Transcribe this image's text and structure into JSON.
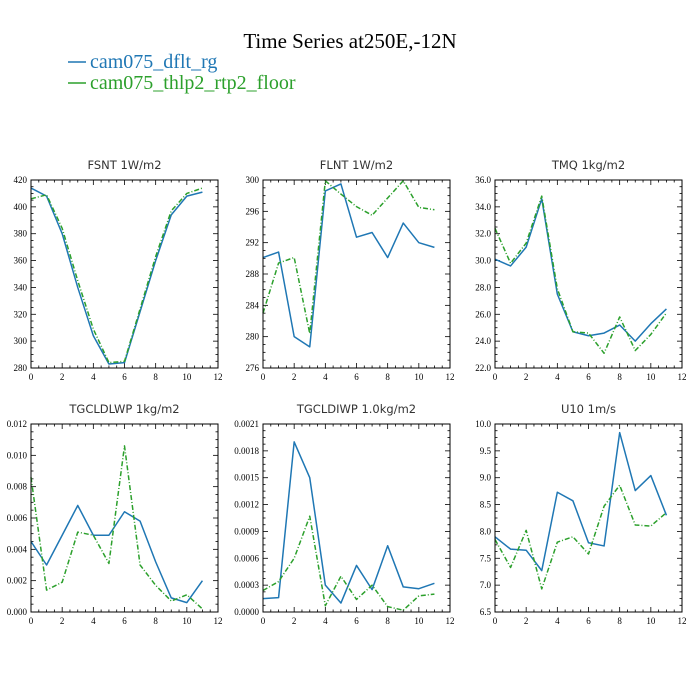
{
  "figure": {
    "title": "Time Series at250E,-12N",
    "legend": [
      {
        "label": "cam075_dflt_rg",
        "color": "#1f77b4",
        "dash": "solid"
      },
      {
        "label": "cam075_thlp2_rtp2_floor",
        "color": "#2ca02c",
        "dash": "dashed"
      }
    ]
  },
  "chart_data": [
    {
      "type": "line",
      "title": "FSNT   1W/m2",
      "x": [
        0,
        1,
        2,
        3,
        4,
        5,
        6,
        7,
        8,
        9,
        10,
        11
      ],
      "xlim": [
        0,
        12
      ],
      "xticks": [
        "0",
        "2",
        "4",
        "6",
        "8",
        "10",
        "12"
      ],
      "ylim": [
        280,
        420
      ],
      "yticks": [
        "280",
        "300",
        "320",
        "340",
        "360",
        "380",
        "400",
        "420"
      ],
      "series": [
        {
          "name": "cam075_dflt_rg",
          "values": [
            414,
            408,
            380,
            340,
            304,
            283,
            284,
            322,
            360,
            394,
            408,
            411
          ]
        },
        {
          "name": "cam075_thlp2_rtp2_floor",
          "values": [
            406,
            409,
            384,
            345,
            309,
            284,
            285,
            324,
            363,
            397,
            410,
            414
          ]
        }
      ]
    },
    {
      "type": "line",
      "title": "FLNT   1W/m2",
      "x": [
        0,
        1,
        2,
        3,
        4,
        5,
        6,
        7,
        8,
        9,
        10,
        11
      ],
      "xlim": [
        0,
        12
      ],
      "xticks": [
        "0",
        "2",
        "4",
        "6",
        "8",
        "10",
        "12"
      ],
      "ylim": [
        276,
        300
      ],
      "yticks": [
        "276",
        "280",
        "284",
        "288",
        "292",
        "296",
        "300"
      ],
      "series": [
        {
          "name": "cam075_dflt_rg",
          "values": [
            290.1,
            290.8,
            280,
            278.7,
            298.6,
            299.5,
            292.7,
            293.3,
            290.1,
            294.5,
            292,
            291.4
          ]
        },
        {
          "name": "cam075_thlp2_rtp2_floor",
          "values": [
            283,
            289.4,
            290.1,
            280.4,
            299.9,
            298.2,
            296.6,
            295.5,
            297.7,
            299.9,
            296.5,
            296.2
          ]
        }
      ]
    },
    {
      "type": "line",
      "title": "TMQ   1kg/m2",
      "x": [
        0,
        1,
        2,
        3,
        4,
        5,
        6,
        7,
        8,
        9,
        10,
        11
      ],
      "xlim": [
        0,
        12
      ],
      "xticks": [
        "0",
        "2",
        "4",
        "6",
        "8",
        "10",
        "12"
      ],
      "ylim": [
        22,
        36
      ],
      "yticks": [
        "22.0",
        "24.0",
        "26.0",
        "28.0",
        "30.0",
        "32.0",
        "34.0",
        "36.0"
      ],
      "series": [
        {
          "name": "cam075_dflt_rg",
          "values": [
            30.1,
            29.6,
            31.0,
            34.6,
            27.5,
            24.7,
            24.4,
            24.6,
            25.2,
            24.0,
            25.3,
            26.4
          ]
        },
        {
          "name": "cam075_thlp2_rtp2_floor",
          "values": [
            32.4,
            29.8,
            31.3,
            34.8,
            27.9,
            24.7,
            24.6,
            23.1,
            25.8,
            23.3,
            24.5,
            26.1
          ]
        }
      ]
    },
    {
      "type": "line",
      "title": "TGCLDLWP   1kg/m2",
      "x": [
        0,
        1,
        2,
        3,
        4,
        5,
        6,
        7,
        8,
        9,
        10,
        11
      ],
      "xlim": [
        0,
        12
      ],
      "xticks": [
        "0",
        "2",
        "4",
        "6",
        "8",
        "10",
        "12"
      ],
      "ylim": [
        0,
        0.012
      ],
      "yticks": [
        "0.000",
        "0.002",
        "0.004",
        "0.006",
        "0.008",
        "0.010",
        "0.012"
      ],
      "series": [
        {
          "name": "cam075_dflt_rg",
          "values": [
            0.0045,
            0.003,
            0.0049,
            0.0068,
            0.0049,
            0.0049,
            0.0064,
            0.0058,
            0.0032,
            0.0009,
            0.0006,
            0.002
          ]
        },
        {
          "name": "cam075_thlp2_rtp2_floor",
          "values": [
            0.0086,
            0.0014,
            0.0019,
            0.0051,
            0.0049,
            0.0031,
            0.0106,
            0.003,
            0.0017,
            0.0007,
            0.0011,
            0.0002
          ]
        }
      ]
    },
    {
      "type": "line",
      "title": "TGCLDIWP   1.0kg/m2",
      "x": [
        0,
        1,
        2,
        3,
        4,
        5,
        6,
        7,
        8,
        9,
        10,
        11
      ],
      "xlim": [
        0,
        12
      ],
      "xticks": [
        "0",
        "2",
        "4",
        "6",
        "8",
        "10",
        "12"
      ],
      "ylim": [
        0,
        0.0021
      ],
      "yticks": [
        "0.0000",
        "0.0003",
        "0.0006",
        "0.0009",
        "0.0012",
        "0.0015",
        "0.0018",
        "0.0021"
      ],
      "series": [
        {
          "name": "cam075_dflt_rg",
          "values": [
            0.00015,
            0.00016,
            0.0019,
            0.0015,
            0.0003,
            0.0001,
            0.00052,
            0.00025,
            0.00074,
            0.00028,
            0.00026,
            0.00032
          ]
        },
        {
          "name": "cam075_thlp2_rtp2_floor",
          "values": [
            0.00024,
            0.00034,
            0.0006,
            0.00107,
            7e-05,
            0.0004,
            0.00014,
            0.0003,
            6e-05,
            2e-05,
            0.00018,
            0.0002
          ]
        }
      ]
    },
    {
      "type": "line",
      "title": "U10   1m/s",
      "x": [
        0,
        1,
        2,
        3,
        4,
        5,
        6,
        7,
        8,
        9,
        10,
        11
      ],
      "xlim": [
        0,
        12
      ],
      "xticks": [
        "0",
        "2",
        "4",
        "6",
        "8",
        "10",
        "12"
      ],
      "ylim": [
        6.5,
        10.0
      ],
      "yticks": [
        "6.5",
        "7.0",
        "7.5",
        "8.0",
        "8.5",
        "9.0",
        "9.5",
        "10.0"
      ],
      "series": [
        {
          "name": "cam075_dflt_rg",
          "values": [
            7.9,
            7.67,
            7.65,
            7.27,
            8.73,
            8.57,
            7.79,
            7.73,
            9.84,
            8.76,
            9.04,
            8.3
          ]
        },
        {
          "name": "cam075_thlp2_rtp2_floor",
          "values": [
            7.85,
            7.33,
            8.02,
            6.93,
            7.8,
            7.9,
            7.58,
            8.47,
            8.86,
            8.12,
            8.1,
            8.35
          ]
        }
      ]
    }
  ]
}
